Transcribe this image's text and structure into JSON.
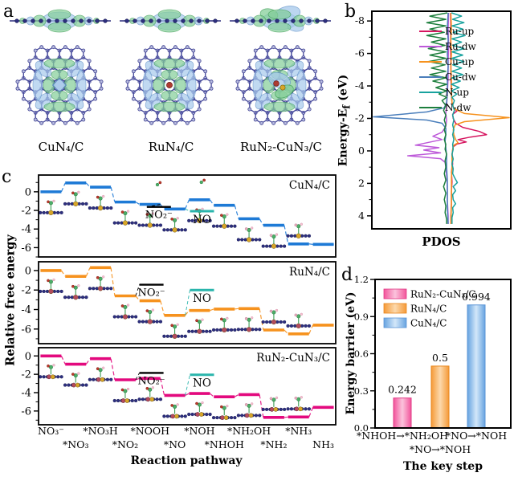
{
  "panel_letters": {
    "a": "a",
    "b": "b",
    "c": "c",
    "d": "d"
  },
  "panel_a": {
    "structures": [
      {
        "label": "CuN₄/C"
      },
      {
        "label": "RuN₄/C"
      },
      {
        "label": "RuN₂-CuN₃/C"
      }
    ]
  },
  "panel_b": {
    "ylabel_pre": "Energy-E",
    "ylabel_sub": "f",
    "ylabel_post": " (eV)",
    "xlabel": "PDOS"
  },
  "panel_c": {
    "ylabel": "Relative free energy",
    "xlabel": "Reaction pathway"
  },
  "panel_d": {
    "ylabel": "Energy barrier (eV)",
    "xlabel": "The key step"
  },
  "chart_data": [
    {
      "id": "b",
      "type": "line",
      "xlabel": "PDOS",
      "ylabel": "Energy-Ef (eV)",
      "ylim": [
        -8.6,
        4.8
      ],
      "yticks": [
        -8,
        -6,
        -4,
        -2,
        0,
        2,
        4
      ],
      "legend_position": "upper right",
      "series": [
        {
          "name": "Ru-up",
          "color": "#d6155f",
          "points": [
            [
              -8.5,
              0.015
            ],
            [
              -7.5,
              0.02
            ],
            [
              -6.5,
              0.015
            ],
            [
              -5.5,
              0.02
            ],
            [
              -4.5,
              0.02
            ],
            [
              -3.5,
              0.03
            ],
            [
              -3.0,
              0.04
            ],
            [
              -2.7,
              0.06
            ],
            [
              -2.45,
              0.12
            ],
            [
              -2.25,
              0.05
            ],
            [
              -2.0,
              0.06
            ],
            [
              -1.7,
              0.1
            ],
            [
              -1.45,
              0.22
            ],
            [
              -1.2,
              0.5
            ],
            [
              -1.0,
              0.62
            ],
            [
              -0.85,
              0.35
            ],
            [
              -0.7,
              0.14
            ],
            [
              -0.55,
              0.28
            ],
            [
              -0.42,
              0.12
            ],
            [
              -0.25,
              0.06
            ],
            [
              -0.05,
              0.05
            ],
            [
              0.3,
              0.04
            ],
            [
              0.8,
              0.05
            ],
            [
              1.3,
              0.03
            ],
            [
              1.9,
              0.04
            ],
            [
              2.5,
              0.03
            ],
            [
              3.2,
              0.03
            ],
            [
              4.0,
              0.02
            ],
            [
              4.5,
              0.02
            ]
          ]
        },
        {
          "name": "Ru-dw",
          "color": "#bd59d9",
          "points": [
            [
              -8.5,
              -0.015
            ],
            [
              -7.5,
              -0.02
            ],
            [
              -6.5,
              -0.015
            ],
            [
              -5.5,
              -0.02
            ],
            [
              -4.5,
              -0.02
            ],
            [
              -3.5,
              -0.03
            ],
            [
              -2.8,
              -0.04
            ],
            [
              -2.3,
              -0.05
            ],
            [
              -1.9,
              -0.04
            ],
            [
              -1.5,
              -0.05
            ],
            [
              -1.15,
              -0.1
            ],
            [
              -0.9,
              -0.22
            ],
            [
              -0.7,
              -0.1
            ],
            [
              -0.5,
              -0.3
            ],
            [
              -0.35,
              -0.45
            ],
            [
              -0.2,
              -0.14
            ],
            [
              -0.05,
              -0.34
            ],
            [
              0.12,
              -0.12
            ],
            [
              0.3,
              -0.55
            ],
            [
              0.48,
              -0.12
            ],
            [
              0.7,
              -0.06
            ],
            [
              1.0,
              -0.05
            ],
            [
              1.5,
              -0.04
            ],
            [
              2.2,
              -0.03
            ],
            [
              3.0,
              -0.03
            ],
            [
              4.0,
              -0.02
            ],
            [
              4.5,
              -0.02
            ]
          ]
        },
        {
          "name": "Cu-up",
          "color": "#f6921e",
          "points": [
            [
              -8.5,
              0.02
            ],
            [
              -7.6,
              0.03
            ],
            [
              -6.8,
              0.02
            ],
            [
              -6.0,
              0.03
            ],
            [
              -5.2,
              0.02
            ],
            [
              -4.4,
              0.03
            ],
            [
              -3.6,
              0.03
            ],
            [
              -3.0,
              0.04
            ],
            [
              -2.6,
              0.07
            ],
            [
              -2.3,
              0.25
            ],
            [
              -2.05,
              1.0
            ],
            [
              -1.8,
              0.25
            ],
            [
              -1.6,
              0.09
            ],
            [
              -1.3,
              0.06
            ],
            [
              -1.0,
              0.07
            ],
            [
              -0.7,
              0.1
            ],
            [
              -0.5,
              0.14
            ],
            [
              -0.35,
              0.07
            ],
            [
              -0.1,
              0.05
            ],
            [
              0.3,
              0.04
            ],
            [
              0.9,
              0.04
            ],
            [
              1.6,
              0.03
            ],
            [
              2.4,
              0.03
            ],
            [
              3.3,
              0.03
            ],
            [
              4.5,
              0.02
            ]
          ]
        },
        {
          "name": "Cu-dw",
          "color": "#4a7ebb",
          "points": [
            [
              -8.5,
              -0.02
            ],
            [
              -7.6,
              -0.03
            ],
            [
              -6.8,
              -0.02
            ],
            [
              -6.0,
              -0.03
            ],
            [
              -5.2,
              -0.02
            ],
            [
              -4.4,
              -0.03
            ],
            [
              -3.6,
              -0.03
            ],
            [
              -3.0,
              -0.04
            ],
            [
              -2.65,
              -0.07
            ],
            [
              -2.4,
              -0.3
            ],
            [
              -2.1,
              -1.0
            ],
            [
              -1.9,
              -0.3
            ],
            [
              -1.7,
              -0.1
            ],
            [
              -1.4,
              -0.05
            ],
            [
              -1.0,
              -0.05
            ],
            [
              -0.6,
              -0.06
            ],
            [
              -0.2,
              -0.05
            ],
            [
              0.3,
              -0.04
            ],
            [
              1.0,
              -0.04
            ],
            [
              1.8,
              -0.03
            ],
            [
              2.6,
              -0.03
            ],
            [
              3.5,
              -0.03
            ],
            [
              4.5,
              -0.02
            ]
          ]
        },
        {
          "name": "N-up",
          "color": "#18a29e",
          "points": [
            [
              -8.5,
              0.03
            ],
            [
              -8.3,
              0.2
            ],
            [
              -8.1,
              0.05
            ],
            [
              -7.9,
              0.24
            ],
            [
              -7.7,
              0.04
            ],
            [
              -7.5,
              0.22
            ],
            [
              -7.3,
              0.06
            ],
            [
              -7.1,
              0.26
            ],
            [
              -6.9,
              0.04
            ],
            [
              -6.7,
              0.2
            ],
            [
              -6.5,
              0.05
            ],
            [
              -6.3,
              0.24
            ],
            [
              -6.1,
              0.04
            ],
            [
              -5.9,
              0.22
            ],
            [
              -5.7,
              0.04
            ],
            [
              -5.5,
              0.24
            ],
            [
              -5.3,
              0.05
            ],
            [
              -5.1,
              0.2
            ],
            [
              -4.9,
              0.04
            ],
            [
              -4.7,
              0.22
            ],
            [
              -4.5,
              0.04
            ],
            [
              -4.3,
              0.18
            ],
            [
              -4.1,
              0.03
            ],
            [
              -3.9,
              0.16
            ],
            [
              -3.7,
              0.03
            ],
            [
              -3.5,
              0.12
            ],
            [
              -3.3,
              0.04
            ],
            [
              -3.1,
              0.08
            ],
            [
              -2.8,
              0.05
            ],
            [
              -2.5,
              0.08
            ],
            [
              -2.2,
              0.05
            ],
            [
              -1.9,
              0.07
            ],
            [
              -1.6,
              0.05
            ],
            [
              -1.3,
              0.07
            ],
            [
              -1.0,
              0.05
            ],
            [
              -0.7,
              0.07
            ],
            [
              -0.4,
              0.05
            ],
            [
              -0.1,
              0.06
            ],
            [
              0.2,
              0.04
            ],
            [
              0.5,
              0.06
            ],
            [
              0.8,
              0.04
            ],
            [
              1.1,
              0.06
            ],
            [
              1.4,
              0.05
            ],
            [
              1.7,
              0.09
            ],
            [
              1.95,
              0.13
            ],
            [
              2.2,
              0.06
            ],
            [
              2.45,
              0.1
            ],
            [
              2.7,
              0.05
            ],
            [
              3.0,
              0.06
            ],
            [
              3.25,
              0.1
            ],
            [
              3.5,
              0.05
            ],
            [
              3.8,
              0.06
            ],
            [
              4.1,
              0.04
            ],
            [
              4.5,
              0.04
            ]
          ]
        },
        {
          "name": "N-dw",
          "color": "#1d7f3d",
          "points": [
            [
              -8.5,
              -0.03
            ],
            [
              -8.3,
              -0.26
            ],
            [
              -8.1,
              -0.05
            ],
            [
              -7.9,
              -0.3
            ],
            [
              -7.7,
              -0.05
            ],
            [
              -7.5,
              -0.26
            ],
            [
              -7.3,
              -0.07
            ],
            [
              -7.1,
              -0.3
            ],
            [
              -6.9,
              -0.05
            ],
            [
              -6.7,
              -0.24
            ],
            [
              -6.5,
              -0.06
            ],
            [
              -6.3,
              -0.28
            ],
            [
              -6.1,
              -0.05
            ],
            [
              -5.9,
              -0.26
            ],
            [
              -5.7,
              -0.05
            ],
            [
              -5.5,
              -0.28
            ],
            [
              -5.3,
              -0.06
            ],
            [
              -5.1,
              -0.24
            ],
            [
              -4.9,
              -0.05
            ],
            [
              -4.7,
              -0.26
            ],
            [
              -4.5,
              -0.05
            ],
            [
              -4.3,
              -0.22
            ],
            [
              -4.1,
              -0.04
            ],
            [
              -3.9,
              -0.18
            ],
            [
              -3.7,
              -0.04
            ],
            [
              -3.5,
              -0.14
            ],
            [
              -3.3,
              -0.04
            ],
            [
              -3.1,
              -0.1
            ],
            [
              -2.8,
              -0.05
            ],
            [
              -2.5,
              -0.08
            ],
            [
              -2.2,
              -0.05
            ],
            [
              -1.9,
              -0.07
            ],
            [
              -1.6,
              -0.05
            ],
            [
              -1.3,
              -0.07
            ],
            [
              -1.0,
              -0.05
            ],
            [
              -0.7,
              -0.07
            ],
            [
              -0.4,
              -0.05
            ],
            [
              -0.1,
              -0.06
            ],
            [
              0.2,
              -0.04
            ],
            [
              0.6,
              -0.06
            ],
            [
              1.0,
              -0.05
            ],
            [
              1.4,
              -0.07
            ],
            [
              1.8,
              -0.05
            ],
            [
              2.2,
              -0.08
            ],
            [
              2.6,
              -0.05
            ],
            [
              3.0,
              -0.07
            ],
            [
              3.4,
              -0.05
            ],
            [
              3.8,
              -0.06
            ],
            [
              4.2,
              -0.04
            ],
            [
              4.5,
              -0.04
            ]
          ]
        }
      ]
    },
    {
      "id": "c",
      "type": "step-line",
      "xlabel": "Reaction pathway",
      "ylabel": "Relative free energy",
      "categories": [
        "NO₃⁻",
        "*NO₃",
        "*NO₃H",
        "*NO₂",
        "*NOOH",
        "*NO",
        "*NOH",
        "*NHOH",
        "*NH₂OH",
        "*NH₂",
        "*NH₃",
        "NH₃"
      ],
      "yticks": [
        0,
        -2,
        -4,
        -6
      ],
      "panels": [
        {
          "title": "CuN₄/C",
          "color": "#1e7ad6",
          "metal_colors": [
            "#d8a629"
          ],
          "ylim": [
            1.8,
            -7.0
          ],
          "values": [
            0,
            0.95,
            0.5,
            -1.1,
            -1.35,
            -1.85,
            -0.86,
            -1.45,
            -2.9,
            -3.6,
            -5.6,
            -5.65
          ],
          "no2_annotation": {
            "label": "NO₂⁻",
            "E": -1.62,
            "x": 0.405,
            "link_step": 4
          },
          "no_annotation": {
            "label": "NO",
            "E": -2.08,
            "x": 0.55,
            "link_step": 5
          },
          "gas_icons": [
            [
              0.4,
              12
            ],
            [
              0.548,
              9
            ]
          ],
          "trail_dash": true
        },
        {
          "title": "RuN₄/C",
          "color": "#f6921e",
          "metal_colors": [
            "#b34a5e"
          ],
          "ylim": [
            0.9,
            -7.5
          ],
          "values": [
            0,
            -0.6,
            0.3,
            -2.6,
            -3.1,
            -4.6,
            -4.1,
            -3.95,
            -3.9,
            -6.1,
            -6.5,
            -5.6
          ],
          "no2_annotation": {
            "label": "NO₂⁻",
            "E": -1.45,
            "x": 0.38,
            "link_step": 3
          },
          "no_annotation": {
            "label": "NO",
            "E": -2.0,
            "x": 0.55,
            "link_step": 5
          },
          "gas_icons": [],
          "trail_dash": false
        },
        {
          "title": "RuN₂-CuN₃/C",
          "color": "#e3097e",
          "metal_colors": [
            "#b34a5e",
            "#d8a629"
          ],
          "ylim": [
            0.9,
            -7.5
          ],
          "values": [
            0,
            -0.9,
            -0.3,
            -2.6,
            -2.45,
            -4.3,
            -4.09,
            -4.45,
            -4.21,
            -6.7,
            -6.65,
            -5.6
          ],
          "no2_annotation": {
            "label": "NO₂⁻",
            "E": -1.85,
            "x": 0.38,
            "link_step": 3
          },
          "no_annotation": {
            "label": "NO",
            "E": -2.05,
            "x": 0.55,
            "link_step": 5
          },
          "gas_icons": [],
          "trail_dash": false
        }
      ]
    },
    {
      "id": "d",
      "type": "bar",
      "xlabel": "The key step",
      "ylabel": "Energy barrier (eV)",
      "ylim": [
        0,
        1.2
      ],
      "yticks": [
        0,
        0.3,
        0.6,
        0.9,
        1.2
      ],
      "bars": [
        {
          "name": "RuN₂-CuN₃/C",
          "value": 0.242,
          "value_label": "0.242",
          "category": "*NHOH→*NH₂OH",
          "label_row": 1,
          "fill": [
            "#f2549b",
            "#fbc3dc"
          ],
          "stroke": "#e23a86"
        },
        {
          "name": "RuN₄/C",
          "value": 0.5,
          "value_label": "0.5",
          "category": "*NO→*NOH",
          "label_row": 2,
          "fill": [
            "#f59a38",
            "#fcd9ac"
          ],
          "stroke": "#e8861c"
        },
        {
          "name": "CuN₄/C",
          "value": 0.994,
          "value_label": "0.994",
          "category": "*NO→*NOH",
          "label_row": 1,
          "fill": [
            "#66a3e0",
            "#d3e7f9"
          ],
          "stroke": "#5b94d6"
        }
      ]
    }
  ]
}
